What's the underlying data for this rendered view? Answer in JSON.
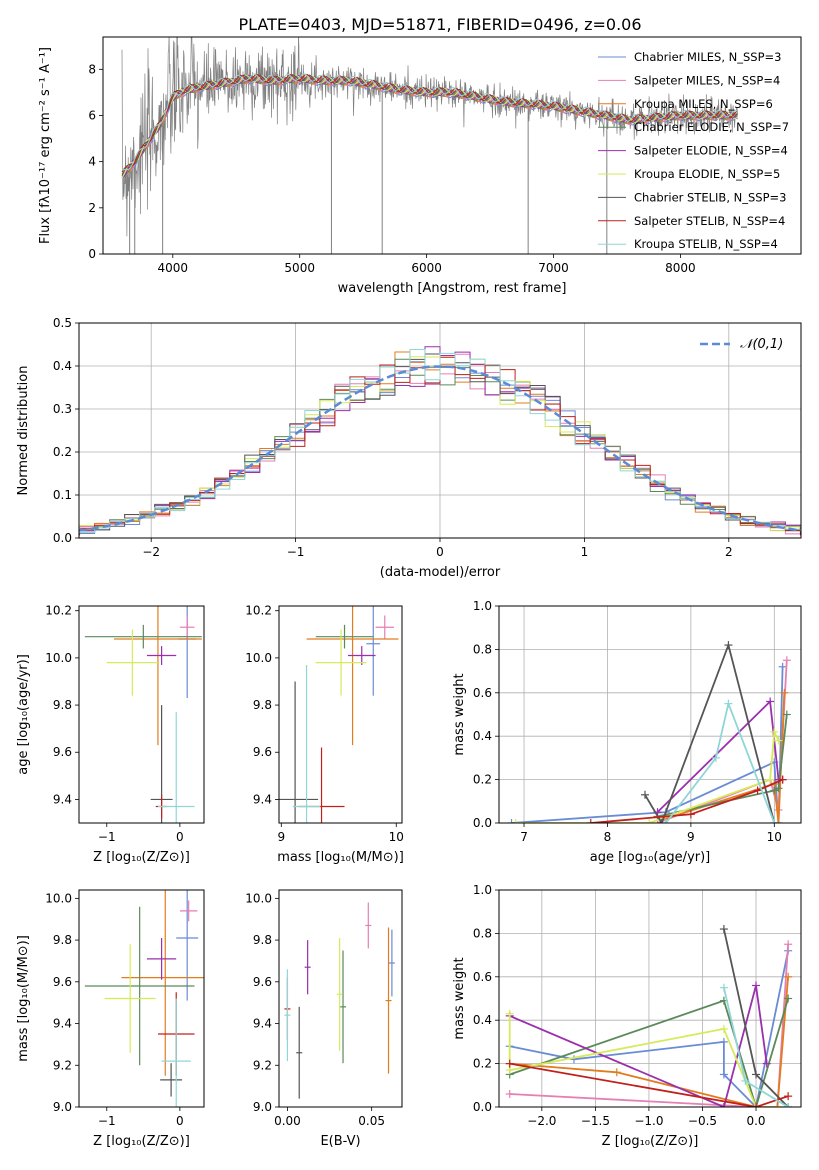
{
  "figure": {
    "title": "PLATE=0403, MJD=51871, FIBERID=0496, z=0.06"
  },
  "colors": [
    "#6a8bd6",
    "#e67fb4",
    "#e37c1e",
    "#5a8a5a",
    "#9b2fae",
    "#d6ea5a",
    "#555555",
    "#c0211c",
    "#8fd6d6"
  ],
  "chart_data": [
    {
      "id": "spectrum",
      "type": "line",
      "xlabel": "wavelength [Angstrom, rest frame]",
      "ylabel": "Flux [fλ10⁻¹⁷ erg cm⁻² s⁻¹ A⁻¹]",
      "xlim": [
        3450,
        8950
      ],
      "ylim": [
        0,
        9.4
      ],
      "xticks": [
        4000,
        5000,
        6000,
        7000,
        8000
      ],
      "yticks": [
        0,
        2,
        4,
        6,
        8
      ],
      "legend_placement": "top-right",
      "legend": [
        "Chabrier MILES, N_SSP=3",
        "Salpeter MILES, N_SSP=4",
        "Kroupa MILES, N_SSP=6",
        "Chabrier ELODIE, N_SSP=7",
        "Salpeter ELODIE, N_SSP=4",
        "Kroupa ELODIE, N_SSP=5",
        "Chabrier STELIB, N_SSP=3",
        "Salpeter STELIB, N_SSP=4",
        "Kroupa STELIB, N_SSP=4"
      ],
      "data_color": "#808080",
      "model_continuum": {
        "x": [
          3600,
          3700,
          3800,
          3900,
          4000,
          4100,
          4200,
          4400,
          4600,
          4800,
          5000,
          5200,
          5400,
          5600,
          5800,
          6000,
          6200,
          6400,
          6600,
          6800,
          7000,
          7200,
          7400,
          7600,
          7800,
          8000,
          8200,
          8400
        ],
        "y": [
          3.4,
          4.0,
          4.8,
          5.6,
          6.8,
          7.1,
          7.2,
          7.4,
          7.6,
          7.5,
          7.6,
          7.5,
          7.5,
          7.3,
          7.1,
          7.0,
          7.0,
          6.8,
          6.6,
          6.5,
          6.4,
          6.2,
          6.0,
          5.8,
          5.9,
          6.0,
          6.0,
          6.0
        ]
      }
    },
    {
      "id": "residuals",
      "type": "histogram",
      "xlabel": "(data-model)/error",
      "ylabel": "Normed distribution",
      "xlim": [
        -2.5,
        2.5
      ],
      "ylim": [
        0,
        0.5
      ],
      "xticks": [
        -2,
        -1,
        0,
        1,
        2
      ],
      "yticks": [
        0.0,
        0.1,
        0.2,
        0.3,
        0.4,
        0.5
      ],
      "grid": true,
      "legend_placement": "top-right",
      "reference_curve": "𝒩(0,1)"
    },
    {
      "id": "age_vs_Z",
      "type": "errorbar",
      "xlabel": "Z [log₁₀(Z/Z⊙)]",
      "ylabel": "age  [log₁₀(age/yr)]",
      "xlim": [
        -1.38,
        0.33
      ],
      "ylim": [
        9.3,
        10.22
      ],
      "xticks": [
        -1,
        0
      ],
      "yticks": [
        9.4,
        9.6,
        9.8,
        10.0,
        10.2
      ],
      "points": [
        {
          "x": 0.1,
          "xerr": 0.12,
          "y": 10.08,
          "yerr": 0.25
        },
        {
          "x": 0.1,
          "xerr": 0.1,
          "y": 10.13,
          "yerr": 0.05
        },
        {
          "x": -0.3,
          "xerr": 0.6,
          "y": 10.08,
          "yerr": 0.45
        },
        {
          "x": -0.5,
          "xerr": 0.8,
          "y": 10.09,
          "yerr": 0.05
        },
        {
          "x": -0.25,
          "xerr": 0.2,
          "y": 10.01,
          "yerr": 0.04
        },
        {
          "x": -0.65,
          "xerr": 0.35,
          "y": 9.98,
          "yerr": 0.14
        },
        {
          "x": -0.25,
          "xerr": 0.15,
          "y": 9.4,
          "yerr": 0.4
        },
        {
          "x": -0.25,
          "xerr": 0.08,
          "y": 9.37,
          "yerr": 0.05
        },
        {
          "x": -0.05,
          "xerr": 0.25,
          "y": 9.37,
          "yerr": 0.4
        }
      ]
    },
    {
      "id": "age_vs_mass",
      "type": "errorbar",
      "xlabel": "mass [log₁₀(M/M⊙)]",
      "ylabel": "",
      "xlim": [
        8.98,
        10.05
      ],
      "ylim": [
        9.3,
        10.22
      ],
      "xticks": [
        9,
        10
      ],
      "yticks": [
        9.4,
        9.6,
        9.8,
        10.0,
        10.2
      ],
      "points": [
        {
          "x": 9.8,
          "xerr": 0.06,
          "y": 10.06,
          "yerr": 0.22
        },
        {
          "x": 9.9,
          "xerr": 0.08,
          "y": 10.13,
          "yerr": 0.05
        },
        {
          "x": 9.62,
          "xerr": 0.4,
          "y": 10.08,
          "yerr": 0.45
        },
        {
          "x": 9.55,
          "xerr": 0.25,
          "y": 10.09,
          "yerr": 0.05
        },
        {
          "x": 9.7,
          "xerr": 0.12,
          "y": 10.01,
          "yerr": 0.04
        },
        {
          "x": 9.52,
          "xerr": 0.22,
          "y": 9.98,
          "yerr": 0.14
        },
        {
          "x": 9.12,
          "xerr": 0.2,
          "y": 9.4,
          "yerr": 0.5
        },
        {
          "x": 9.35,
          "xerr": 0.2,
          "y": 9.37,
          "yerr": 0.25
        },
        {
          "x": 9.22,
          "xerr": 0.12,
          "y": 9.37,
          "yerr": 0.6
        }
      ]
    },
    {
      "id": "weight_vs_age",
      "type": "line",
      "xlabel": "age  [log₁₀(age/yr)]",
      "ylabel": "mass weight",
      "xlim": [
        6.7,
        10.32
      ],
      "ylim": [
        0,
        1.0
      ],
      "xticks": [
        7,
        8,
        9,
        10
      ],
      "yticks": [
        0.0,
        0.2,
        0.4,
        0.6,
        0.8,
        1.0
      ],
      "grid": true,
      "series": [
        {
          "x": [
            6.85,
            8.7,
            10.0,
            10.05,
            10.1
          ],
          "y": [
            0.0,
            0.05,
            0.28,
            0.0,
            0.72
          ]
        },
        {
          "x": [
            8.6,
            9.95,
            10.05,
            10.15
          ],
          "y": [
            0.0,
            0.2,
            0.06,
            0.75
          ]
        },
        {
          "x": [
            8.7,
            10.0,
            10.05,
            10.12
          ],
          "y": [
            0.02,
            0.18,
            0.0,
            0.6
          ]
        },
        {
          "x": [
            8.6,
            10.0,
            10.05,
            10.15
          ],
          "y": [
            0.03,
            0.15,
            0.16,
            0.5
          ]
        },
        {
          "x": [
            8.6,
            9.95,
            10.05,
            10.1
          ],
          "y": [
            0.05,
            0.56,
            0.2,
            0.2
          ]
        },
        {
          "x": [
            6.9,
            8.5,
            9.95,
            10.0,
            10.05
          ],
          "y": [
            0.0,
            0.0,
            0.2,
            0.42,
            0.38
          ]
        },
        {
          "x": [
            8.45,
            8.65,
            9.45,
            10.0
          ],
          "y": [
            0.13,
            0.0,
            0.82,
            0.0
          ]
        },
        {
          "x": [
            7.8,
            9.0,
            9.8,
            10.1
          ],
          "y": [
            0.0,
            0.04,
            0.15,
            0.2
          ]
        },
        {
          "x": [
            8.7,
            9.3,
            9.45,
            10.0
          ],
          "y": [
            0.0,
            0.3,
            0.55,
            0.0
          ]
        }
      ]
    },
    {
      "id": "mass_vs_Z",
      "type": "errorbar",
      "xlabel": "Z [log₁₀(Z/Z⊙)]",
      "ylabel": "mass [log₁₀(M/M⊙)]",
      "xlim": [
        -1.38,
        0.33
      ],
      "ylim": [
        9.0,
        10.04
      ],
      "xticks": [
        -1,
        0
      ],
      "yticks": [
        9.0,
        9.2,
        9.4,
        9.6,
        9.8,
        10.0
      ],
      "points": [
        {
          "x": 0.1,
          "xerr": 0.15,
          "y": 9.81,
          "yerr": 0.3
        },
        {
          "x": 0.12,
          "xerr": 0.12,
          "y": 9.94,
          "yerr": 0.05
        },
        {
          "x": -0.2,
          "xerr": 0.6,
          "y": 9.62,
          "yerr": 0.47
        },
        {
          "x": -0.55,
          "xerr": 0.75,
          "y": 9.58,
          "yerr": 0.38
        },
        {
          "x": -0.25,
          "xerr": 0.2,
          "y": 9.71,
          "yerr": 0.1
        },
        {
          "x": -0.68,
          "xerr": 0.35,
          "y": 9.52,
          "yerr": 0.26
        },
        {
          "x": -0.12,
          "xerr": 0.15,
          "y": 9.13,
          "yerr": 0.08
        },
        {
          "x": -0.05,
          "xerr": 0.25,
          "y": 9.35,
          "yerr": 0.2
        },
        {
          "x": -0.05,
          "xerr": 0.2,
          "y": 9.22,
          "yerr": 0.3
        }
      ]
    },
    {
      "id": "mass_vs_ebv",
      "type": "errorbar",
      "xlabel": "E(B-V)",
      "ylabel": "",
      "xlim": [
        -0.005,
        0.068
      ],
      "ylim": [
        9.0,
        10.04
      ],
      "xticks": [
        0.0,
        0.05
      ],
      "yticks": [
        9.0,
        9.2,
        9.4,
        9.6,
        9.8,
        10.0
      ],
      "points": [
        {
          "x": 0.062,
          "y": 9.69,
          "yerr": 0.16
        },
        {
          "x": 0.048,
          "y": 9.87,
          "yerr": 0.11
        },
        {
          "x": 0.06,
          "y": 9.51,
          "yerr": 0.35
        },
        {
          "x": 0.033,
          "y": 9.48,
          "yerr": 0.27
        },
        {
          "x": 0.012,
          "y": 9.67,
          "yerr": 0.13
        },
        {
          "x": 0.031,
          "y": 9.54,
          "yerr": 0.27
        },
        {
          "x": 0.007,
          "y": 9.26,
          "yerr": 0.22
        },
        {
          "x": 0.0,
          "y": 9.47,
          "yerr": 0.15
        },
        {
          "x": 0.0,
          "y": 9.44,
          "yerr": 0.22
        }
      ]
    },
    {
      "id": "weight_vs_Z",
      "type": "line",
      "xlabel": "Z [log₁₀(Z/Z⊙)]",
      "ylabel": "mass weight",
      "xlim": [
        -2.4,
        0.42
      ],
      "ylim": [
        0,
        1.0
      ],
      "xticks": [
        -2.0,
        -1.5,
        -1.0,
        -0.5,
        0.0
      ],
      "yticks": [
        0.0,
        0.2,
        0.4,
        0.6,
        0.8,
        1.0
      ],
      "grid": true,
      "series": [
        {
          "x": [
            -2.3,
            -1.7,
            -0.3,
            -0.3,
            0.0,
            0.3
          ],
          "y": [
            0.28,
            0.22,
            0.3,
            0.15,
            0.0,
            0.72
          ]
        },
        {
          "x": [
            -2.3,
            0.0,
            0.2,
            0.3
          ],
          "y": [
            0.06,
            0.0,
            0.0,
            0.75
          ]
        },
        {
          "x": [
            -2.3,
            -1.3,
            0.0,
            0.2,
            0.3
          ],
          "y": [
            0.2,
            0.16,
            0.0,
            0.0,
            0.6
          ]
        },
        {
          "x": [
            -2.3,
            -0.3,
            0.0,
            0.3
          ],
          "y": [
            0.15,
            0.49,
            0.0,
            0.5
          ]
        },
        {
          "x": [
            -2.3,
            -0.3,
            0.0,
            0.1
          ],
          "y": [
            0.42,
            0.0,
            0.56,
            0.2
          ]
        },
        {
          "x": [
            -2.3,
            -2.3,
            -0.3,
            0.0,
            0.3
          ],
          "y": [
            0.43,
            0.17,
            0.36,
            0.0,
            0.0
          ]
        },
        {
          "x": [
            -0.3,
            0.0,
            0.3
          ],
          "y": [
            0.82,
            0.15,
            0.0
          ]
        },
        {
          "x": [
            -2.3,
            0.0,
            0.3
          ],
          "y": [
            0.2,
            0.0,
            0.05
          ]
        },
        {
          "x": [
            -0.3,
            -0.1,
            0.3
          ],
          "y": [
            0.55,
            0.12,
            0.0
          ]
        }
      ]
    }
  ]
}
